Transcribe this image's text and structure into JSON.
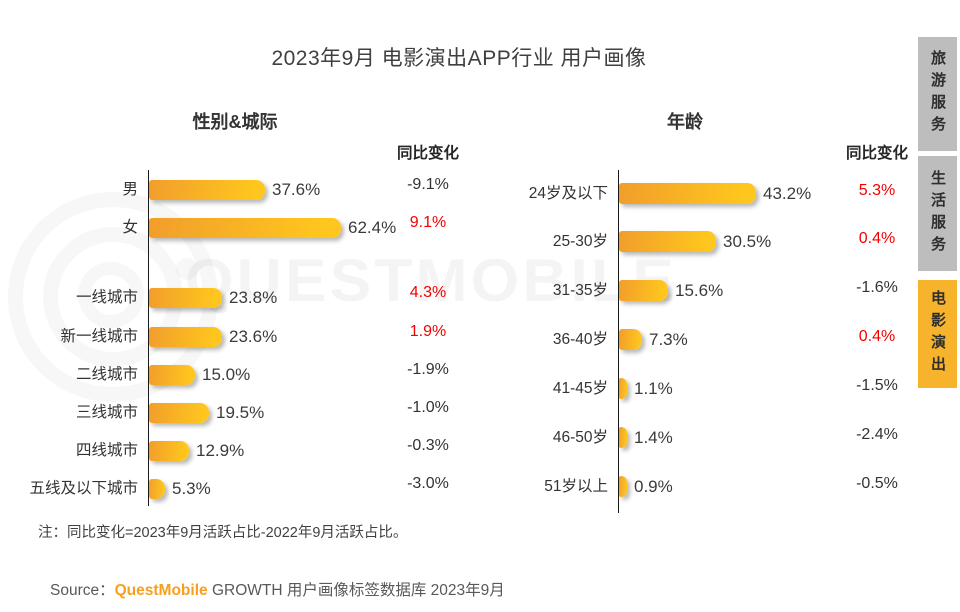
{
  "title": "2023年9月 电影演出APP行业 用户画像",
  "watermark": {
    "text": "QUESTMOBILE"
  },
  "note": "注：同比变化=2023年9月活跃占比-2022年9月活跃占比。",
  "source": {
    "prefix": "Source：",
    "brand": "QuestMobile",
    "suffix": " GROWTH 用户画像标签数据库 2023年9月"
  },
  "colors": {
    "bar_gradient_start": "#F19E2B",
    "bar_gradient_end": "#FFC61E",
    "yoy_positive": "#F40000",
    "yoy_negative": "#333333",
    "tab_inactive_bg": "#BDBDBD",
    "tab_active_bg": "#F7B32C",
    "brand_orange": "#F8A01E"
  },
  "sidebar_tabs": [
    {
      "label": "旅游服务",
      "active": false
    },
    {
      "label": "生活服务",
      "active": false
    },
    {
      "label": "电影演出",
      "active": true
    }
  ],
  "chart_data": [
    {
      "type": "bar",
      "orientation": "horizontal",
      "title": "性别&城际",
      "yoy_header": "同比变化",
      "unit": "%",
      "value_axis_hidden": true,
      "rows": [
        {
          "label": "男",
          "value": 37.6,
          "yoy": -9.1
        },
        {
          "label": "女",
          "value": 62.4,
          "yoy": 9.1
        },
        {
          "label": "一线城市",
          "value": 23.8,
          "yoy": 4.3
        },
        {
          "label": "新一线城市",
          "value": 23.6,
          "yoy": 1.9
        },
        {
          "label": "二线城市",
          "value": 15.0,
          "yoy": -1.9
        },
        {
          "label": "三线城市",
          "value": 19.5,
          "yoy": -1.0
        },
        {
          "label": "四线城市",
          "value": 12.9,
          "yoy": -0.3
        },
        {
          "label": "五线及以下城市",
          "value": 5.3,
          "yoy": -3.0
        }
      ]
    },
    {
      "type": "bar",
      "orientation": "horizontal",
      "title": "年龄",
      "yoy_header": "同比变化",
      "unit": "%",
      "value_axis_hidden": true,
      "rows": [
        {
          "label": "24岁及以下",
          "value": 43.2,
          "yoy": 5.3
        },
        {
          "label": "25-30岁",
          "value": 30.5,
          "yoy": 0.4
        },
        {
          "label": "31-35岁",
          "value": 15.6,
          "yoy": -1.6
        },
        {
          "label": "36-40岁",
          "value": 7.3,
          "yoy": 0.4
        },
        {
          "label": "41-45岁",
          "value": 1.1,
          "yoy": -1.5
        },
        {
          "label": "46-50岁",
          "value": 1.4,
          "yoy": -2.4
        },
        {
          "label": "51岁以上",
          "value": 0.9,
          "yoy": -0.5
        }
      ]
    }
  ]
}
